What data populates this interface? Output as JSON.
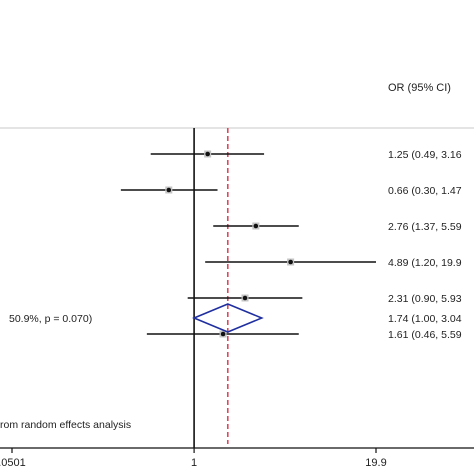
{
  "chart_data": {
    "type": "forest",
    "scale": "log",
    "xlim": [
      0.0501,
      19.9
    ],
    "xticks": [
      {
        "value": 0.0501,
        "label": ".0501"
      },
      {
        "value": 1,
        "label": "1"
      },
      {
        "value": 19.9,
        "label": "19.9"
      }
    ],
    "null_line": 1,
    "pooled_line": 1.74,
    "column_header": "OR (95% CI)",
    "studies": [
      {
        "or": 1.25,
        "lo": 0.49,
        "hi": 3.16,
        "label": "1.25 (0.49, 3.16"
      },
      {
        "or": 0.66,
        "lo": 0.3,
        "hi": 1.47,
        "label": "0.66 (0.30, 1.47"
      },
      {
        "or": 2.76,
        "lo": 1.37,
        "hi": 5.59,
        "label": "2.76 (1.37, 5.59"
      },
      {
        "or": 4.89,
        "lo": 1.2,
        "hi": 19.9,
        "label": "4.89 (1.20, 19.9"
      },
      {
        "or": 2.31,
        "lo": 0.9,
        "hi": 5.93,
        "label": "2.31 (0.90, 5.93"
      },
      {
        "or": 1.61,
        "lo": 0.46,
        "hi": 5.59,
        "label": "1.61 (0.46, 5.59"
      }
    ],
    "overall": {
      "or": 1.74,
      "lo": 1.0,
      "hi": 3.04,
      "label": "1.74 (1.00, 3.04",
      "heterogeneity_label": "50.9%, p = 0.070)"
    },
    "footnote": "rom random effects analysis",
    "colors": {
      "line": "#111111",
      "pooled_line": "#e0455a",
      "diamond": "#1f2fa0",
      "separator": "#c8c8c8"
    }
  }
}
